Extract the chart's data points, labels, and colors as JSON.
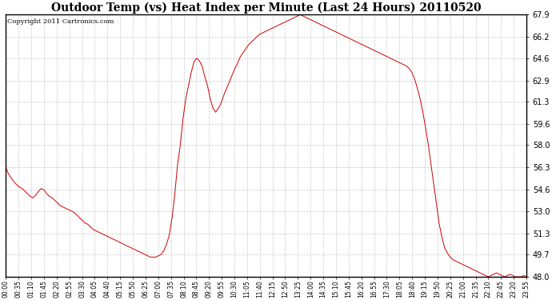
{
  "title": "Outdoor Temp (vs) Heat Index per Minute (Last 24 Hours) 20110520",
  "copyright": "Copyright 2011 Cartronics.com",
  "yticks": [
    48.0,
    49.7,
    51.3,
    53.0,
    54.6,
    56.3,
    58.0,
    59.6,
    61.3,
    62.9,
    64.6,
    66.2,
    67.9
  ],
  "ymin": 48.0,
  "ymax": 67.9,
  "line_color": "#cc0000",
  "bg_color": "#ffffff",
  "grid_color": "#bbbbbb",
  "title_fontsize": 10,
  "copyright_fontsize": 6,
  "xtick_fontsize": 5.5,
  "ytick_fontsize": 7,
  "x_labels": [
    "00:00",
    "00:35",
    "01:10",
    "01:45",
    "02:20",
    "02:55",
    "03:30",
    "04:05",
    "04:40",
    "05:15",
    "05:50",
    "06:25",
    "07:00",
    "07:35",
    "08:10",
    "08:45",
    "09:20",
    "09:55",
    "10:30",
    "11:05",
    "11:40",
    "12:15",
    "12:50",
    "13:25",
    "14:00",
    "14:35",
    "15:10",
    "15:45",
    "16:20",
    "16:55",
    "17:30",
    "18:05",
    "18:40",
    "19:15",
    "19:50",
    "20:25",
    "21:00",
    "21:35",
    "22:10",
    "22:45",
    "23:20",
    "23:55"
  ],
  "temp_data": [
    56.3,
    55.8,
    55.5,
    55.2,
    55.0,
    54.8,
    54.7,
    54.5,
    54.3,
    54.1,
    54.0,
    54.2,
    54.5,
    54.7,
    54.6,
    54.3,
    54.1,
    54.0,
    53.8,
    53.6,
    53.4,
    53.3,
    53.2,
    53.1,
    53.0,
    52.9,
    52.7,
    52.5,
    52.3,
    52.1,
    52.0,
    51.8,
    51.6,
    51.5,
    51.4,
    51.3,
    51.2,
    51.1,
    51.0,
    50.9,
    50.8,
    50.7,
    50.6,
    50.5,
    50.4,
    50.3,
    50.2,
    50.1,
    50.0,
    49.9,
    49.8,
    49.7,
    49.6,
    49.5,
    49.5,
    49.5,
    49.6,
    49.7,
    50.0,
    50.5,
    51.2,
    52.5,
    54.3,
    56.5,
    58.0,
    60.0,
    61.5,
    62.5,
    63.5,
    64.3,
    64.6,
    64.4,
    64.0,
    63.2,
    62.5,
    61.5,
    60.8,
    60.5,
    60.8,
    61.2,
    61.8,
    62.3,
    62.8,
    63.3,
    63.8,
    64.2,
    64.7,
    65.0,
    65.3,
    65.6,
    65.8,
    66.0,
    66.2,
    66.4,
    66.5,
    66.6,
    66.7,
    66.8,
    66.9,
    67.0,
    67.1,
    67.2,
    67.3,
    67.4,
    67.5,
    67.6,
    67.7,
    67.8,
    67.9,
    67.8,
    67.7,
    67.6,
    67.5,
    67.4,
    67.3,
    67.2,
    67.1,
    67.0,
    66.9,
    66.8,
    66.7,
    66.6,
    66.5,
    66.4,
    66.3,
    66.2,
    66.1,
    66.0,
    65.9,
    65.8,
    65.7,
    65.6,
    65.5,
    65.4,
    65.3,
    65.2,
    65.1,
    65.0,
    64.9,
    64.8,
    64.7,
    64.6,
    64.5,
    64.4,
    64.3,
    64.2,
    64.1,
    64.0,
    63.8,
    63.5,
    63.0,
    62.3,
    61.5,
    60.5,
    59.3,
    58.0,
    56.5,
    55.0,
    53.5,
    52.0,
    51.0,
    50.2,
    49.8,
    49.5,
    49.3,
    49.2,
    49.1,
    49.0,
    48.9,
    48.8,
    48.7,
    48.6,
    48.5,
    48.4,
    48.3,
    48.2,
    48.1,
    48.0,
    48.1,
    48.2,
    48.3,
    48.2,
    48.1,
    48.0,
    48.1,
    48.2,
    48.1,
    48.0,
    48.0,
    48.0,
    48.1,
    48.0
  ]
}
